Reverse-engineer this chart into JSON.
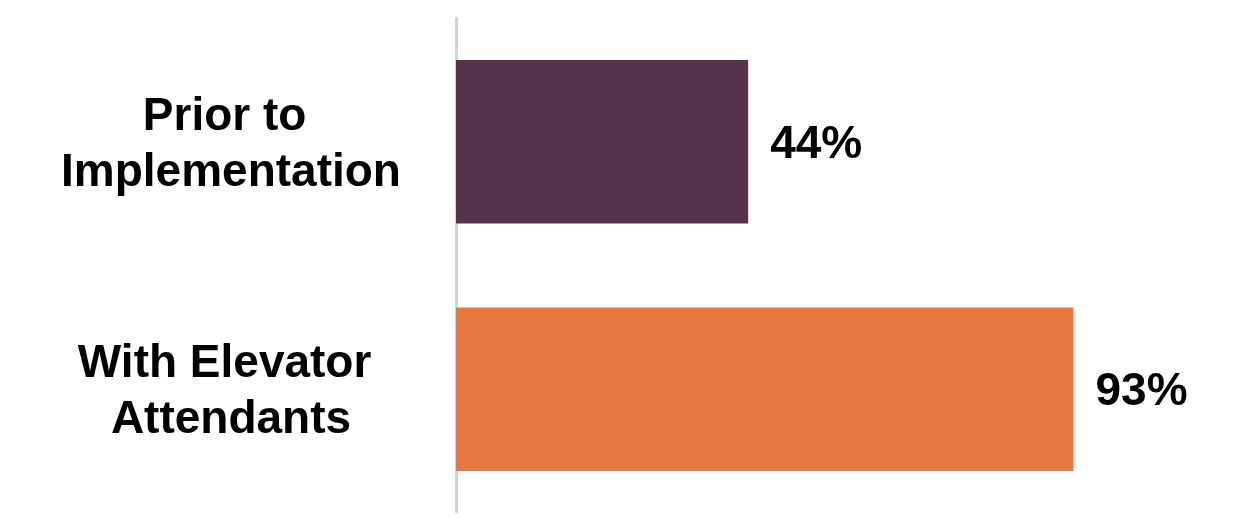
{
  "chart_data": {
    "type": "bar",
    "orientation": "horizontal",
    "categories": [
      "Prior to Implementation",
      "With Elevator Attendants"
    ],
    "values": [
      44,
      93
    ],
    "value_labels": [
      "44%",
      "93%"
    ],
    "colors": [
      "#56344e",
      "#e77641"
    ]
  }
}
